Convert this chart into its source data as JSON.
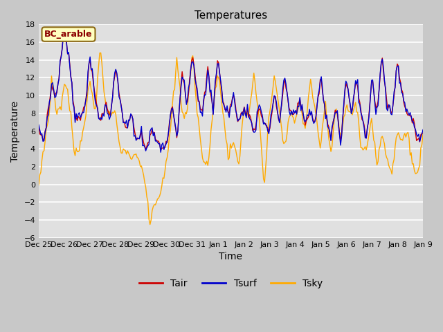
{
  "title": "Temperatures",
  "xlabel": "Time",
  "ylabel": "Temperature",
  "annotation": "BC_arable",
  "ylim": [
    -6,
    18
  ],
  "yticks": [
    -6,
    -4,
    -2,
    0,
    2,
    4,
    6,
    8,
    10,
    12,
    14,
    16,
    18
  ],
  "fig_bg": "#c8c8c8",
  "plot_bg": "#e0e0e0",
  "line_colors": {
    "Tair": "#cc0000",
    "Tsurf": "#0000cc",
    "Tsky": "#ffaa00"
  },
  "line_width": 1.0,
  "xtick_labels": [
    "Dec 25",
    "Dec 26",
    "Dec 27",
    "Dec 28",
    "Dec 29",
    "Dec 30",
    "Dec 31",
    "Jan 1",
    "Jan 2",
    "Jan 3",
    "Jan 4",
    "Jan 5",
    "Jan 6",
    "Jan 7",
    "Jan 8",
    "Jan 9"
  ],
  "time_days": 15,
  "n_points": 360
}
